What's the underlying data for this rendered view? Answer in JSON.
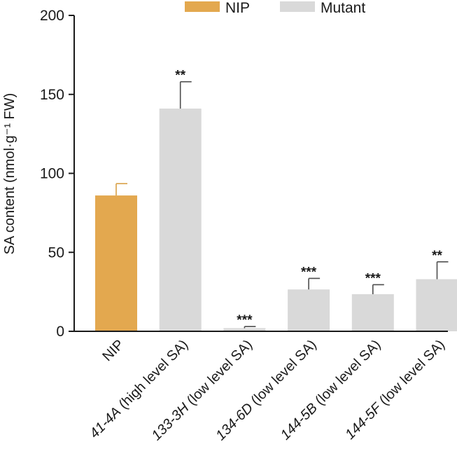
{
  "chart_data": {
    "type": "bar",
    "ylabel": "SA content (nmol·g⁻¹ FW)",
    "xlabel": "",
    "ylim": [
      0,
      200
    ],
    "yticks": [
      0,
      50,
      100,
      150,
      200
    ],
    "grid": false,
    "legend": {
      "placement": "top-center",
      "entries": [
        {
          "name": "NIP",
          "color": "#e3a84f"
        },
        {
          "name": "Mutant",
          "color": "#d9d9d9"
        }
      ]
    },
    "categories": [
      {
        "prefix": "",
        "strain": "NIP",
        "suffix": ""
      },
      {
        "prefix": "",
        "strain": "41-4A",
        "suffix": " (high level SA)"
      },
      {
        "prefix": "",
        "strain": "133-3",
        "italic_part": "H",
        "suffix": " (low level SA)"
      },
      {
        "prefix": "",
        "strain": "134-6D",
        "suffix": " (low level SA)"
      },
      {
        "prefix": "",
        "strain": "144-5B",
        "suffix": " (low level SA)"
      },
      {
        "prefix": "",
        "strain": "144-5F",
        "suffix": " (low level SA)"
      }
    ],
    "values": [
      86,
      141,
      2,
      26.5,
      23.5,
      33
    ],
    "errors": [
      7.5,
      17,
      1,
      7,
      6,
      11
    ],
    "groups": [
      "NIP",
      "Mutant",
      "Mutant",
      "Mutant",
      "Mutant",
      "Mutant"
    ],
    "significance": [
      "",
      "**",
      "***",
      "***",
      "***",
      "**"
    ],
    "colors": {
      "NIP": "#e3a84f",
      "Mutant": "#d9d9d9"
    }
  }
}
